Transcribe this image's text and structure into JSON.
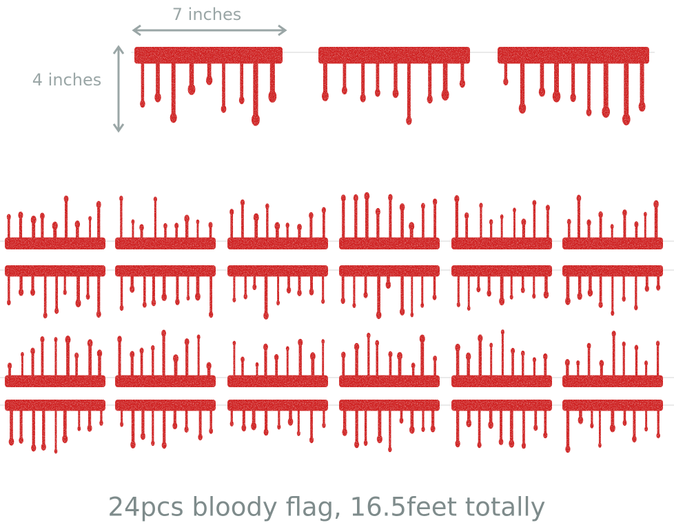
{
  "dimensions": {
    "width_label": "7 inches",
    "height_label": "4 inches"
  },
  "caption": "24pcs bloody flag, 16.5feet totally"
}
